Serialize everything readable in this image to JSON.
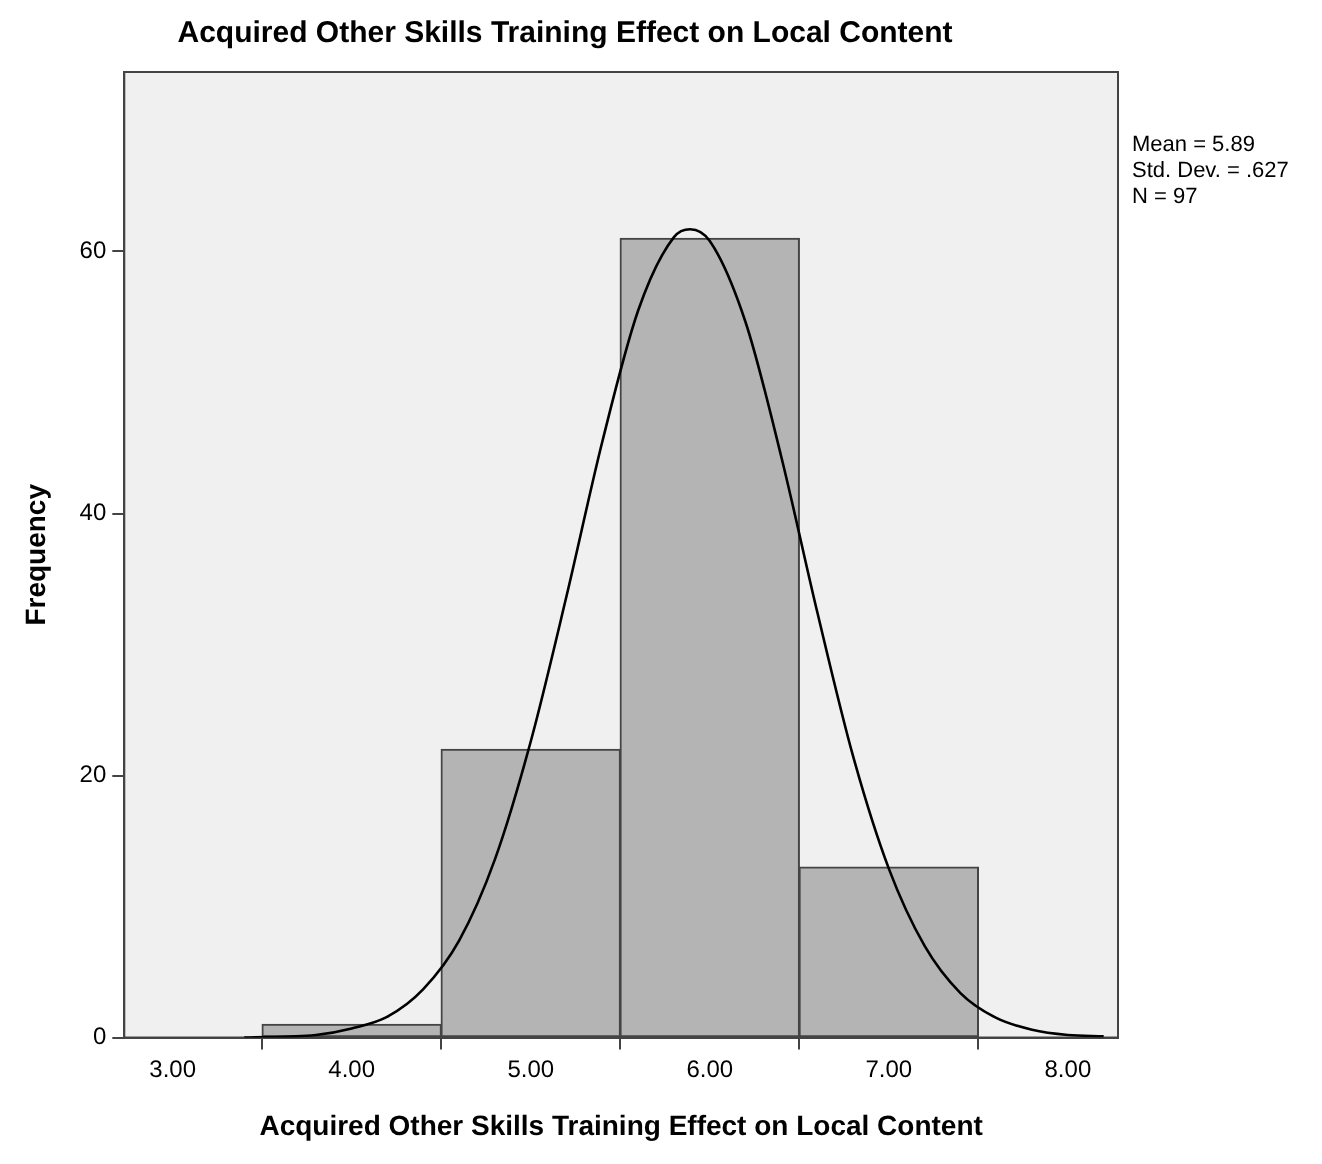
{
  "chart_data": {
    "type": "histogram",
    "title": "Acquired Other Skills Training Effect on Local Content",
    "xlabel": "Acquired Other Skills Training Effect on Local Content",
    "ylabel": "Frequency",
    "series": [
      {
        "color": "#b4b4b4",
        "bins": [
          3.5,
          4.5,
          5.5,
          6.5,
          7.5
        ],
        "values": [
          1,
          22,
          61,
          13
        ]
      },
      {
        "type": "line",
        "color": "#000000",
        "x": [
          3.4,
          3.8,
          4.0,
          4.2,
          4.4,
          4.6,
          4.8,
          5.0,
          5.2,
          5.4,
          5.6,
          5.8,
          5.89,
          6.0,
          6.2,
          6.4,
          6.6,
          6.8,
          7.0,
          7.2,
          7.4,
          7.6,
          7.8,
          8.0,
          8.2
        ],
        "values": [
          0.0,
          0.2,
          0.7,
          1.6,
          3.7,
          7.4,
          13.6,
          22.6,
          33.7,
          45.5,
          55.5,
          61.1,
          61.7,
          60.8,
          54.6,
          44.3,
          32.5,
          21.5,
          12.9,
          7.0,
          3.4,
          1.5,
          0.6,
          0.2,
          0.1
        ]
      }
    ],
    "xlim": [
      2.73,
      8.28
    ],
    "xticks": [
      {
        "value": 3,
        "label": "3.00"
      },
      {
        "value": 4,
        "label": "4.00"
      },
      {
        "value": 5,
        "label": "5.00"
      },
      {
        "value": 6,
        "label": "6.00"
      },
      {
        "value": 7,
        "label": "7.00"
      },
      {
        "value": 8,
        "label": "8.00"
      }
    ],
    "ylim": [
      0,
      73.7
    ],
    "yticks": [
      0,
      20,
      40,
      60
    ],
    "grid": false,
    "legend": false,
    "marker": "none",
    "line_style": "solid",
    "annotations": [
      "Mean = 5.89",
      "Std. Dev. = .627",
      "N = 97"
    ]
  }
}
